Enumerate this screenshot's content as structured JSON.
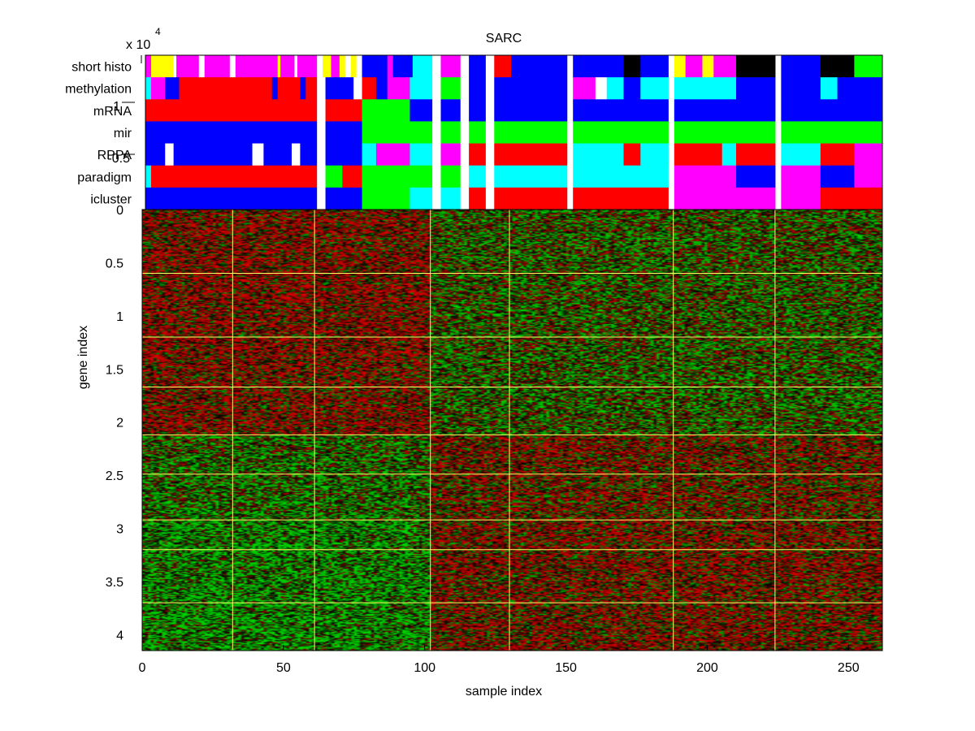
{
  "chart_data": {
    "type": "heatmap",
    "title": "SARC",
    "xlabel": "sample index",
    "ylabel": "gene index",
    "exponent_label": "x 10",
    "exponent_power": "4",
    "xlim": [
      0,
      262
    ],
    "ylim": [
      0,
      41500
    ],
    "x_ticks": [
      0,
      50,
      100,
      150,
      200,
      250
    ],
    "x_tick_labels": [
      "0",
      "50",
      "100",
      "150",
      "200",
      "250"
    ],
    "y_ticks": [
      0,
      5000,
      10000,
      15000,
      20000,
      25000,
      30000,
      35000,
      40000
    ],
    "y_tick_labels": [
      "0",
      "0.5",
      "1",
      "1.5",
      "2",
      "2.5",
      "3",
      "3.5",
      "4"
    ],
    "annotation_axis_stray_labels": [
      "-1",
      "-0.5"
    ],
    "annotation_rows": [
      "short histo",
      "methylation",
      "mRNA",
      "mir",
      "RPPA",
      "paradigm",
      "icluster"
    ],
    "colors": {
      "heat_high": "#e00000",
      "heat_low": "#00e000",
      "heat_mid": "#000000",
      "separator": "#ffff66",
      "categories": [
        "#ff0000",
        "#0000ff",
        "#00ff00",
        "#ff00ff",
        "#00ffff",
        "#ffff00",
        "#000000",
        "#ffffff"
      ]
    },
    "sample_group_boundaries": [
      32,
      61,
      102,
      130,
      188,
      224
    ],
    "gene_group_boundaries": [
      6000,
      12000,
      16700,
      21200,
      24900,
      29200,
      32000,
      37000
    ],
    "annotation_segments": {
      "short histo": [
        [
          0,
          2,
          "#ff00ff"
        ],
        [
          2,
          10,
          "#ffff00"
        ],
        [
          10,
          11,
          "#ffffff"
        ],
        [
          11,
          19,
          "#ff00ff"
        ],
        [
          19,
          21,
          "#ffffff"
        ],
        [
          21,
          30,
          "#ff00ff"
        ],
        [
          30,
          32,
          "#ffffff"
        ],
        [
          32,
          47,
          "#ff00ff"
        ],
        [
          47,
          48,
          "#ffff00"
        ],
        [
          48,
          53,
          "#ff00ff"
        ],
        [
          53,
          54,
          "#ffffff"
        ],
        [
          54,
          61,
          "#ff00ff"
        ],
        [
          61,
          63,
          "#ffffff"
        ],
        [
          63,
          66,
          "#ffff00"
        ],
        [
          66,
          69,
          "#ff00ff"
        ],
        [
          69,
          71,
          "#ffff00"
        ],
        [
          71,
          73,
          "#ffffff"
        ],
        [
          73,
          75,
          "#ffff00"
        ],
        [
          75,
          77,
          "#ffffff"
        ],
        [
          77,
          86,
          "#0000ff"
        ],
        [
          86,
          88,
          "#ff00ff"
        ],
        [
          88,
          95,
          "#0000ff"
        ],
        [
          95,
          102,
          "#00ffff"
        ],
        [
          102,
          105,
          "#ffffff"
        ],
        [
          105,
          112,
          "#ff00ff"
        ],
        [
          112,
          115,
          "#ffffff"
        ],
        [
          115,
          121,
          "#0000ff"
        ],
        [
          121,
          124,
          "#ffffff"
        ],
        [
          124,
          130,
          "#ff0000"
        ],
        [
          130,
          150,
          "#0000ff"
        ],
        [
          150,
          152,
          "#ffffff"
        ],
        [
          152,
          170,
          "#0000ff"
        ],
        [
          170,
          176,
          "#000000"
        ],
        [
          176,
          186,
          "#0000ff"
        ],
        [
          186,
          188,
          "#ffffff"
        ],
        [
          188,
          192,
          "#ffff00"
        ],
        [
          192,
          198,
          "#ff00ff"
        ],
        [
          198,
          202,
          "#ffff00"
        ],
        [
          202,
          210,
          "#ff00ff"
        ],
        [
          210,
          224,
          "#000000"
        ],
        [
          224,
          226,
          "#ffffff"
        ],
        [
          226,
          240,
          "#0000ff"
        ],
        [
          240,
          252,
          "#000000"
        ],
        [
          252,
          262,
          "#00ff00"
        ]
      ],
      "methylation": [
        [
          0,
          2,
          "#00ffff"
        ],
        [
          2,
          7,
          "#ff00ff"
        ],
        [
          7,
          12,
          "#0000ff"
        ],
        [
          12,
          45,
          "#ff0000"
        ],
        [
          45,
          47,
          "#0000ff"
        ],
        [
          47,
          55,
          "#ff0000"
        ],
        [
          55,
          57,
          "#0000ff"
        ],
        [
          57,
          61,
          "#ff0000"
        ],
        [
          61,
          64,
          "#ffffff"
        ],
        [
          64,
          74,
          "#0000ff"
        ],
        [
          74,
          77,
          "#ffffff"
        ],
        [
          77,
          82,
          "#ff0000"
        ],
        [
          82,
          86,
          "#0000ff"
        ],
        [
          86,
          94,
          "#ff00ff"
        ],
        [
          94,
          102,
          "#00ffff"
        ],
        [
          102,
          105,
          "#ffffff"
        ],
        [
          105,
          112,
          "#00ff00"
        ],
        [
          112,
          115,
          "#ffffff"
        ],
        [
          115,
          121,
          "#0000ff"
        ],
        [
          121,
          124,
          "#ffffff"
        ],
        [
          124,
          150,
          "#0000ff"
        ],
        [
          150,
          152,
          "#ffffff"
        ],
        [
          152,
          160,
          "#ff00ff"
        ],
        [
          160,
          164,
          "#ffffff"
        ],
        [
          164,
          170,
          "#00ffff"
        ],
        [
          170,
          176,
          "#0000ff"
        ],
        [
          176,
          186,
          "#00ffff"
        ],
        [
          186,
          188,
          "#ffffff"
        ],
        [
          188,
          210,
          "#00ffff"
        ],
        [
          210,
          224,
          "#0000ff"
        ],
        [
          224,
          226,
          "#ffffff"
        ],
        [
          226,
          240,
          "#0000ff"
        ],
        [
          240,
          246,
          "#00ffff"
        ],
        [
          246,
          262,
          "#0000ff"
        ]
      ],
      "mRNA": [
        [
          0,
          61,
          "#ff0000"
        ],
        [
          61,
          64,
          "#ffffff"
        ],
        [
          64,
          77,
          "#ff0000"
        ],
        [
          77,
          82,
          "#00ff00"
        ],
        [
          82,
          94,
          "#00ff00"
        ],
        [
          94,
          102,
          "#0000ff"
        ],
        [
          102,
          105,
          "#ffffff"
        ],
        [
          105,
          112,
          "#0000ff"
        ],
        [
          112,
          115,
          "#ffffff"
        ],
        [
          115,
          121,
          "#0000ff"
        ],
        [
          121,
          124,
          "#ffffff"
        ],
        [
          124,
          150,
          "#0000ff"
        ],
        [
          150,
          152,
          "#ffffff"
        ],
        [
          152,
          186,
          "#0000ff"
        ],
        [
          186,
          188,
          "#ffffff"
        ],
        [
          188,
          224,
          "#0000ff"
        ],
        [
          224,
          226,
          "#ffffff"
        ],
        [
          226,
          262,
          "#0000ff"
        ]
      ],
      "mir": [
        [
          0,
          61,
          "#0000ff"
        ],
        [
          61,
          64,
          "#ffffff"
        ],
        [
          64,
          77,
          "#0000ff"
        ],
        [
          77,
          102,
          "#00ff00"
        ],
        [
          102,
          105,
          "#ffffff"
        ],
        [
          105,
          112,
          "#00ff00"
        ],
        [
          112,
          115,
          "#ffffff"
        ],
        [
          115,
          121,
          "#00ff00"
        ],
        [
          121,
          124,
          "#ffffff"
        ],
        [
          124,
          150,
          "#00ff00"
        ],
        [
          150,
          152,
          "#ffffff"
        ],
        [
          152,
          186,
          "#00ff00"
        ],
        [
          186,
          188,
          "#ffffff"
        ],
        [
          188,
          224,
          "#00ff00"
        ],
        [
          224,
          226,
          "#ffffff"
        ],
        [
          226,
          262,
          "#00ff00"
        ]
      ],
      "RPPA": [
        [
          0,
          7,
          "#0000ff"
        ],
        [
          7,
          10,
          "#ffffff"
        ],
        [
          10,
          38,
          "#0000ff"
        ],
        [
          38,
          42,
          "#ffffff"
        ],
        [
          42,
          52,
          "#0000ff"
        ],
        [
          52,
          55,
          "#ffffff"
        ],
        [
          55,
          61,
          "#0000ff"
        ],
        [
          61,
          64,
          "#ffffff"
        ],
        [
          64,
          77,
          "#0000ff"
        ],
        [
          77,
          82,
          "#00ffff"
        ],
        [
          82,
          94,
          "#ff00ff"
        ],
        [
          94,
          102,
          "#00ffff"
        ],
        [
          102,
          105,
          "#ffffff"
        ],
        [
          105,
          112,
          "#ff00ff"
        ],
        [
          112,
          115,
          "#ffffff"
        ],
        [
          115,
          121,
          "#ff0000"
        ],
        [
          121,
          124,
          "#ffffff"
        ],
        [
          124,
          150,
          "#ff0000"
        ],
        [
          150,
          152,
          "#ffffff"
        ],
        [
          152,
          170,
          "#00ffff"
        ],
        [
          170,
          176,
          "#ff0000"
        ],
        [
          176,
          186,
          "#00ffff"
        ],
        [
          186,
          188,
          "#ffffff"
        ],
        [
          188,
          205,
          "#ff0000"
        ],
        [
          205,
          210,
          "#00ffff"
        ],
        [
          210,
          224,
          "#ff0000"
        ],
        [
          224,
          226,
          "#ffffff"
        ],
        [
          226,
          240,
          "#00ffff"
        ],
        [
          240,
          252,
          "#ff0000"
        ],
        [
          252,
          262,
          "#ff00ff"
        ]
      ],
      "paradigm": [
        [
          0,
          2,
          "#00ffff"
        ],
        [
          2,
          61,
          "#ff0000"
        ],
        [
          61,
          64,
          "#ffffff"
        ],
        [
          64,
          70,
          "#00ff00"
        ],
        [
          70,
          77,
          "#ff0000"
        ],
        [
          77,
          94,
          "#00ff00"
        ],
        [
          94,
          102,
          "#00ff00"
        ],
        [
          102,
          105,
          "#ffffff"
        ],
        [
          105,
          112,
          "#00ff00"
        ],
        [
          112,
          115,
          "#ffffff"
        ],
        [
          115,
          121,
          "#00ffff"
        ],
        [
          121,
          124,
          "#ffffff"
        ],
        [
          124,
          150,
          "#00ffff"
        ],
        [
          150,
          152,
          "#ffffff"
        ],
        [
          152,
          186,
          "#00ffff"
        ],
        [
          186,
          188,
          "#ffffff"
        ],
        [
          188,
          210,
          "#ff00ff"
        ],
        [
          210,
          224,
          "#0000ff"
        ],
        [
          224,
          226,
          "#ffffff"
        ],
        [
          226,
          240,
          "#ff00ff"
        ],
        [
          240,
          252,
          "#0000ff"
        ],
        [
          252,
          262,
          "#ff00ff"
        ]
      ],
      "icluster": [
        [
          0,
          61,
          "#0000ff"
        ],
        [
          61,
          64,
          "#ffffff"
        ],
        [
          64,
          77,
          "#0000ff"
        ],
        [
          77,
          94,
          "#00ff00"
        ],
        [
          94,
          102,
          "#00ffff"
        ],
        [
          102,
          105,
          "#ffffff"
        ],
        [
          105,
          112,
          "#00ffff"
        ],
        [
          112,
          115,
          "#ffffff"
        ],
        [
          115,
          121,
          "#ff0000"
        ],
        [
          121,
          124,
          "#ffffff"
        ],
        [
          124,
          150,
          "#ff0000"
        ],
        [
          150,
          152,
          "#ffffff"
        ],
        [
          152,
          186,
          "#ff0000"
        ],
        [
          186,
          188,
          "#ffffff"
        ],
        [
          188,
          224,
          "#ff00ff"
        ],
        [
          224,
          226,
          "#ffffff"
        ],
        [
          226,
          240,
          "#ff00ff"
        ],
        [
          240,
          252,
          "#ff0000"
        ],
        [
          252,
          262,
          "#ff0000"
        ]
      ]
    }
  }
}
